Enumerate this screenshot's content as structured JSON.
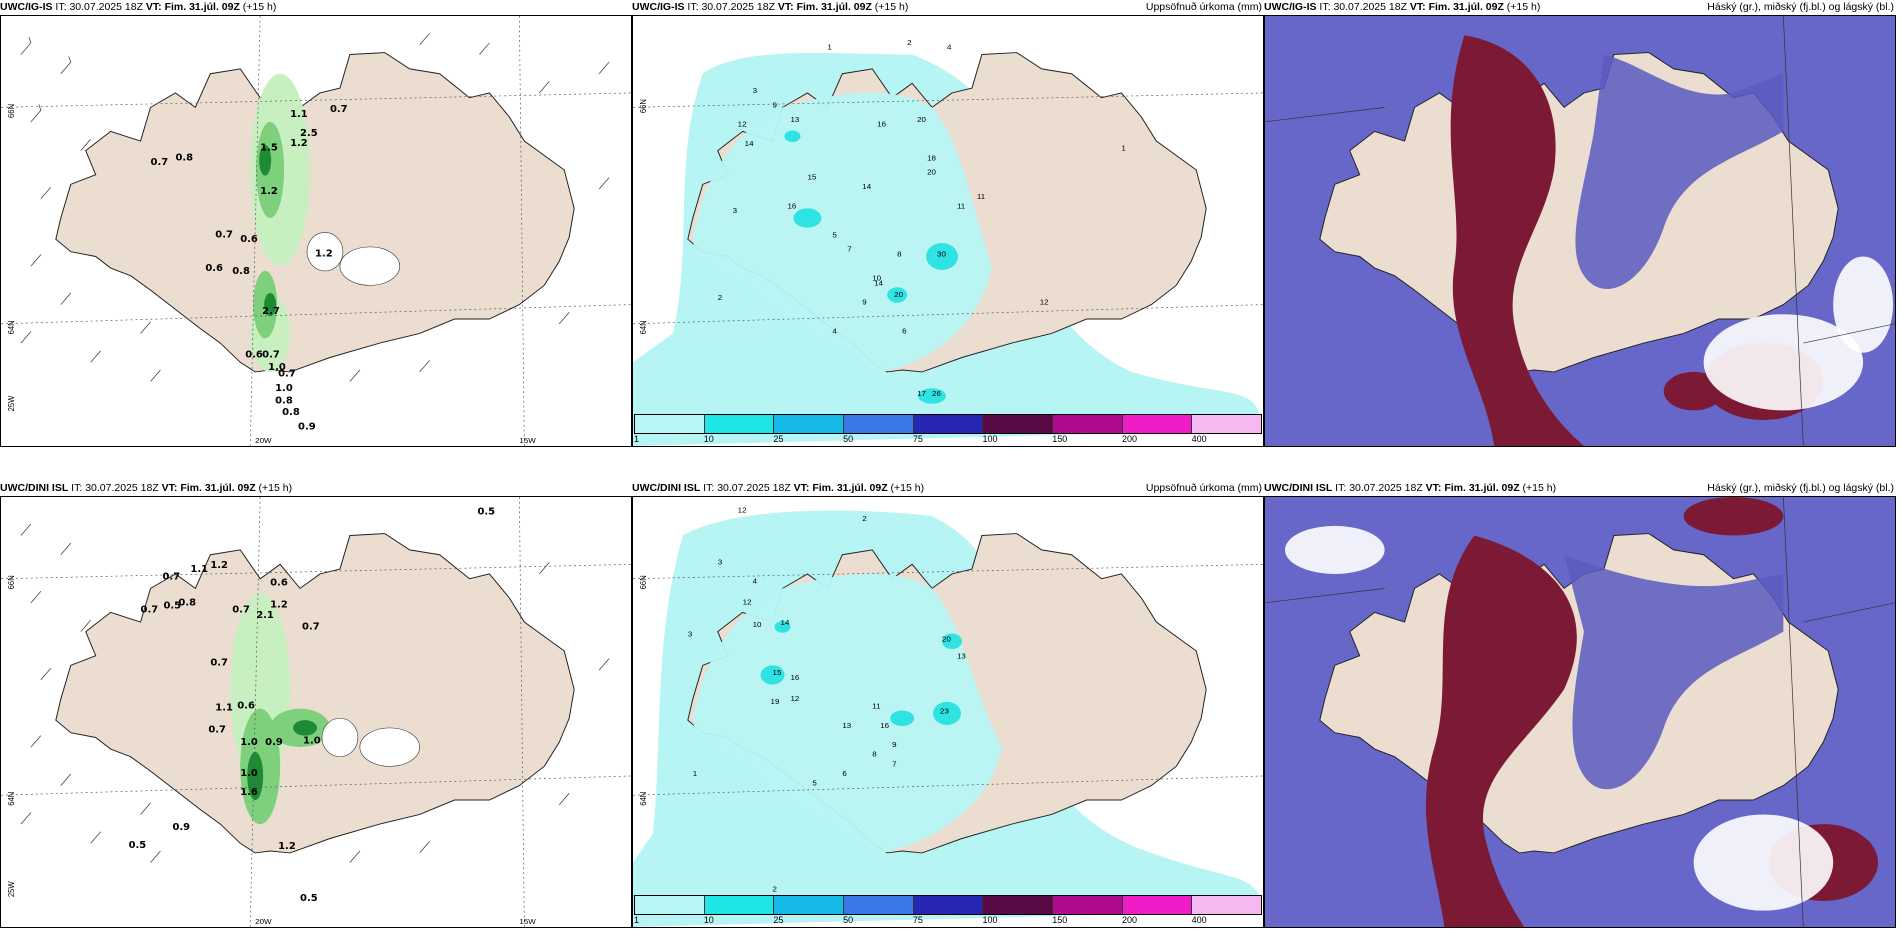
{
  "colors": {
    "land": "#ebddd0",
    "wind_rain_light": "#c8efc0",
    "wind_rain_mid": "#7fd07c",
    "wind_rain_dark": "#1e8a34",
    "precip_light": "#b7f4f4",
    "precip_mid": "#2fe3e3",
    "cloud_low": "#6767c9",
    "cloud_high": "#7c1a36",
    "cloud_mid": "#e7b9a8"
  },
  "panels": [
    {
      "model": "UWC/IG-IS",
      "it_label": "IT:",
      "it_value": "30.07.2025 18Z",
      "vt_label": "VT:",
      "vt_value": "Fim. 31.júl. 09Z",
      "lead": "(+15 h)",
      "right_title": "",
      "lat_labels": [
        "66N",
        "64N",
        "25W"
      ],
      "lon_labels": [
        "20W",
        "15W"
      ],
      "values": [
        "1.1",
        "0.7",
        "0.7",
        "0.8",
        "1.5",
        "1.2",
        "2.5",
        "1.2",
        "0.7",
        "0.6",
        "0.6",
        "0.8",
        "2.7",
        "1.2",
        "0.6",
        "0.7",
        "1.0",
        "0.7",
        "1.0",
        "0.8",
        "0.8",
        "0.9"
      ]
    },
    {
      "model": "UWC/IG-IS",
      "it_label": "IT:",
      "it_value": "30.07.2025 18Z",
      "vt_label": "VT:",
      "vt_value": "Fim. 31.júl. 09Z",
      "lead": "(+15 h)",
      "right_title": "Uppsöfnuð úrkoma (mm)",
      "lat_labels": [
        "66N",
        "64N"
      ],
      "values": [
        "1",
        "2",
        "4",
        "3",
        "9",
        "13",
        "12",
        "14",
        "16",
        "20",
        "18",
        "20",
        "15",
        "16",
        "14",
        "11",
        "30",
        "20",
        "14",
        "12",
        "17",
        "26",
        "2",
        "3",
        "5",
        "7",
        "8",
        "10",
        "6",
        "4",
        "9",
        "11",
        "1"
      ],
      "colorbar_ticks": [
        "1",
        "10",
        "25",
        "50",
        "75",
        "100",
        "150",
        "200",
        "400"
      ],
      "colorbar_colors": [
        "#b8f5f5",
        "#20e5e5",
        "#14b9e6",
        "#3a78e6",
        "#2727b4",
        "#5a0a46",
        "#b00a90",
        "#f01cc8",
        "#f6b8f0"
      ]
    },
    {
      "model": "UWC/IG-IS",
      "it_label": "IT:",
      "it_value": "30.07.2025 18Z",
      "vt_label": "VT:",
      "vt_value": "Fim. 31.júl. 09Z",
      "lead": "(+15 h)",
      "right_title": "Háský (gr.), miðský (fj.bl.) og lágský (bl.)"
    },
    {
      "model": "UWC/DINI ISL",
      "it_label": "IT:",
      "it_value": "30.07.2025 18Z",
      "vt_label": "VT:",
      "vt_value": "Fim. 31.júl. 09Z",
      "lead": "(+15 h)",
      "right_title": "",
      "lat_labels": [
        "66N",
        "64N",
        "25W"
      ],
      "lon_labels": [
        "20W",
        "15W"
      ],
      "values": [
        "0.5",
        "0.7",
        "1.1",
        "1.2",
        "0.6",
        "0.7",
        "0.5",
        "0.8",
        "0.7",
        "2.1",
        "1.2",
        "0.7",
        "0.7",
        "1.1",
        "0.6",
        "0.7",
        "1.0",
        "0.9",
        "1.0",
        "1.0",
        "1.6",
        "0.9",
        "0.5",
        "1.2",
        "0.5"
      ]
    },
    {
      "model": "UWC/DINI ISL",
      "it_label": "IT:",
      "it_value": "30.07.2025 18Z",
      "vt_label": "VT:",
      "vt_value": "Fim. 31.júl. 09Z",
      "lead": "(+15 h)",
      "right_title": "Uppsöfnuð úrkoma (mm)",
      "lat_labels": [
        "66N",
        "64N"
      ],
      "values": [
        "12",
        "3",
        "2",
        "4",
        "12",
        "10",
        "14",
        "15",
        "16",
        "19",
        "12",
        "20",
        "13",
        "23",
        "13",
        "16",
        "11",
        "9",
        "8",
        "7",
        "6",
        "5",
        "1",
        "2",
        "3"
      ],
      "colorbar_ticks": [
        "1",
        "10",
        "25",
        "50",
        "75",
        "100",
        "150",
        "200",
        "400"
      ],
      "colorbar_colors": [
        "#b8f5f5",
        "#20e5e5",
        "#14b9e6",
        "#3a78e6",
        "#2727b4",
        "#5a0a46",
        "#b00a90",
        "#f01cc8",
        "#f6b8f0"
      ]
    },
    {
      "model": "UWC/DINI ISL",
      "it_label": "IT:",
      "it_value": "30.07.2025 18Z",
      "vt_label": "VT:",
      "vt_value": "Fim. 31.júl. 09Z",
      "lead": "(+15 h)",
      "right_title": "Háský (gr.), miðský (fj.bl.) og lágský (bl.)"
    }
  ]
}
